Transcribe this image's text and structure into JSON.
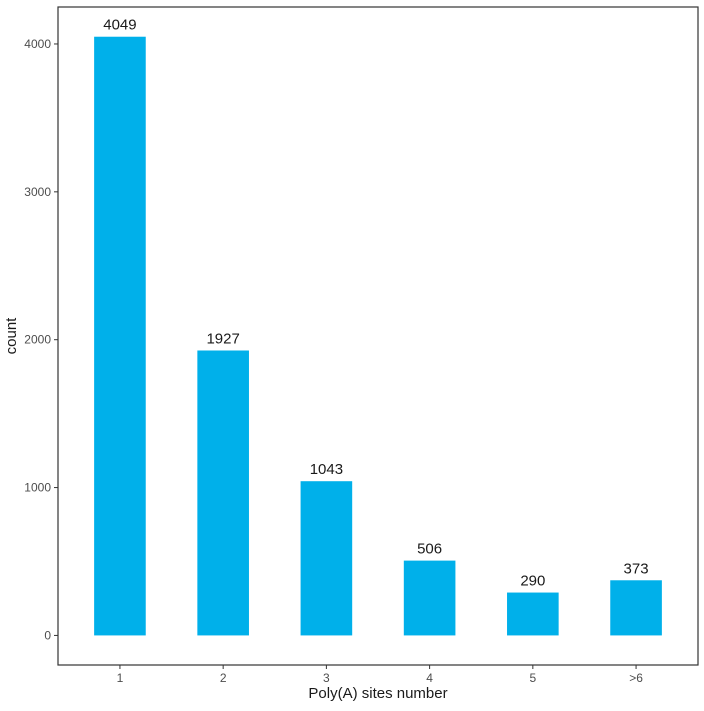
{
  "chart_data": {
    "type": "bar",
    "categories": [
      "1",
      "2",
      "3",
      "4",
      "5",
      ">6"
    ],
    "values": [
      4049,
      1927,
      1043,
      506,
      290,
      373
    ],
    "data_labels": [
      "4049",
      "1927",
      "1043",
      "506",
      "290",
      "373"
    ],
    "title": "",
    "xlabel": "Poly(A) sites number",
    "ylabel": "count",
    "ylim": [
      -200,
      4250
    ],
    "yticks": [
      0,
      1000,
      2000,
      3000,
      4000
    ],
    "grid": false,
    "legend": "none",
    "bar_color": "#00b0ea"
  }
}
